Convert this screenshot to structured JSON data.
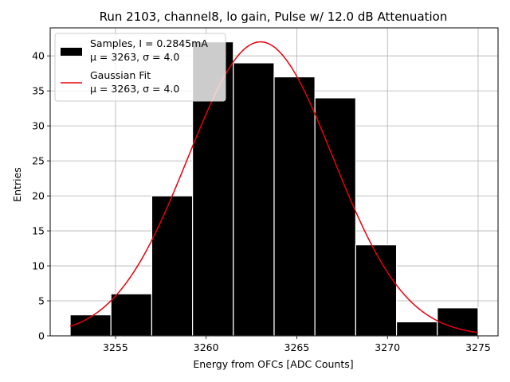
{
  "chart_data": {
    "type": "bar",
    "title": "Run 2103, channel8, lo gain, Pulse w/ 12.0 dB Attenuation",
    "xlabel": "Energy from OFCs [ADC Counts]",
    "ylabel": "Entries",
    "xlim": [
      3251.4,
      3276.1
    ],
    "ylim": [
      0,
      44
    ],
    "xticks": [
      3255,
      3260,
      3265,
      3270,
      3275
    ],
    "yticks": [
      0,
      5,
      10,
      15,
      20,
      25,
      30,
      35,
      40
    ],
    "grid": true,
    "legend_placement": "top-left",
    "histogram": {
      "name": "Samples, I = 0.2845mA",
      "stats": "μ = 3263, σ = 4.0",
      "color": "#000000",
      "edgecolor": "#ffffff",
      "bins": [
        {
          "x0": 3252.5,
          "x1": 3254.75,
          "count": 3
        },
        {
          "x0": 3254.75,
          "x1": 3257.0,
          "count": 6
        },
        {
          "x0": 3257.0,
          "x1": 3259.25,
          "count": 20
        },
        {
          "x0": 3259.25,
          "x1": 3261.5,
          "count": 42
        },
        {
          "x0": 3261.5,
          "x1": 3263.75,
          "count": 39
        },
        {
          "x0": 3263.75,
          "x1": 3266.0,
          "count": 37
        },
        {
          "x0": 3266.0,
          "x1": 3268.25,
          "count": 34
        },
        {
          "x0": 3268.25,
          "x1": 3270.5,
          "count": 13
        },
        {
          "x0": 3270.5,
          "x1": 3272.75,
          "count": 2
        },
        {
          "x0": 3272.75,
          "x1": 3275.0,
          "count": 4
        }
      ]
    },
    "fit": {
      "name": "Gaussian Fit",
      "stats": "μ = 3263, σ = 4.0",
      "color": "#e8000b",
      "amplitude": 42,
      "mean": 3263.0,
      "sigma": 4.0,
      "x_range": [
        3252.5,
        3275.0
      ]
    }
  }
}
